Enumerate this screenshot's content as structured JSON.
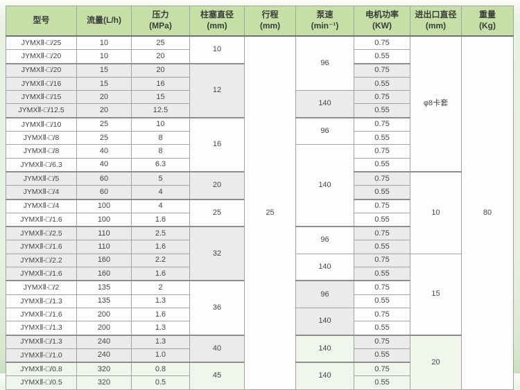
{
  "colors": {
    "header_bg": "#c6dfa6",
    "row_shade_gray": "#ebebeb",
    "row_shade_green": "#f0f6eb",
    "page_bg": "#e6f1de",
    "border": "#a2a2a2",
    "text": "#454545"
  },
  "table": {
    "columns": [
      {
        "key": "model",
        "label": "型号"
      },
      {
        "key": "flow",
        "label": "流量(L/h)"
      },
      {
        "key": "pressure",
        "label": "压力\n(MPa)"
      },
      {
        "key": "plunger",
        "label": "柱塞直径\n(mm)"
      },
      {
        "key": "stroke",
        "label": "行程\n(mm)"
      },
      {
        "key": "speed",
        "label": "泵速\n(min⁻¹)"
      },
      {
        "key": "power",
        "label": "电机功率\n(KW)"
      },
      {
        "key": "inlet",
        "label": "进出口直径\n(mm)"
      },
      {
        "key": "weight",
        "label": "重量\n(Kg)"
      }
    ],
    "rows": [
      {
        "model": "JYMXⅡ-□/25",
        "flow": "10",
        "pressure": "25",
        "power": "0.75"
      },
      {
        "model": "JYMXⅡ-□/20",
        "flow": "10",
        "pressure": "20",
        "power": "0.55"
      },
      {
        "model": "JYMXⅡ-□/20",
        "flow": "15",
        "pressure": "20",
        "power": "0.75"
      },
      {
        "model": "JYMXⅡ-□/16",
        "flow": "15",
        "pressure": "16",
        "power": "0.55"
      },
      {
        "model": "JYMXⅡ-□/15",
        "flow": "20",
        "pressure": "15",
        "power": "0.75"
      },
      {
        "model": "JYMXⅡ-□/12.5",
        "flow": "20",
        "pressure": "12.5",
        "power": "0.55"
      },
      {
        "model": "JYMXⅡ-□/10",
        "flow": "25",
        "pressure": "10",
        "power": "0.75"
      },
      {
        "model": "JYMXⅡ-□/8",
        "flow": "25",
        "pressure": "8",
        "power": "0.55"
      },
      {
        "model": "JYMXⅡ-□/8",
        "flow": "40",
        "pressure": "8",
        "power": "0.75"
      },
      {
        "model": "JYMXⅡ-□/6.3",
        "flow": "40",
        "pressure": "6.3",
        "power": "0.55"
      },
      {
        "model": "JYMXⅡ-□/5",
        "flow": "60",
        "pressure": "5",
        "power": "0.75"
      },
      {
        "model": "JYMXⅡ-□/4",
        "flow": "60",
        "pressure": "4",
        "power": "0.55"
      },
      {
        "model": "JYMXⅡ-□/4",
        "flow": "100",
        "pressure": "4",
        "power": "0.75"
      },
      {
        "model": "JYMXⅡ-□/1.6",
        "flow": "100",
        "pressure": "1.6",
        "power": "0.55"
      },
      {
        "model": "JYMXⅡ-□/2.5",
        "flow": "110",
        "pressure": "2.5",
        "power": "0.75"
      },
      {
        "model": "JYMXⅡ-□/1.6",
        "flow": "110",
        "pressure": "1.6",
        "power": "0.55"
      },
      {
        "model": "JYMXⅡ-□/2.2",
        "flow": "160",
        "pressure": "2.2",
        "power": "0.75"
      },
      {
        "model": "JYMXⅡ-□/1.6",
        "flow": "160",
        "pressure": "1.6",
        "power": "0.55"
      },
      {
        "model": "JYMXⅡ-□/2",
        "flow": "135",
        "pressure": "2",
        "power": "0.75"
      },
      {
        "model": "JYMXⅡ-□/1.3",
        "flow": "135",
        "pressure": "1.3",
        "power": "0.55"
      },
      {
        "model": "JYMXⅡ-□/1.6",
        "flow": "200",
        "pressure": "1.6",
        "power": "0.75"
      },
      {
        "model": "JYMXⅡ-□/1.3",
        "flow": "200",
        "pressure": "1.3",
        "power": "0.55"
      },
      {
        "model": "JYMXⅡ-□/1.3",
        "flow": "240",
        "pressure": "1.3",
        "power": "0.75"
      },
      {
        "model": "JYMXⅡ-□/1.0",
        "flow": "240",
        "pressure": "1.0",
        "power": "0.55"
      },
      {
        "model": "JYMXⅡ-□/0.8",
        "flow": "320",
        "pressure": "0.8",
        "power": "0.75"
      },
      {
        "model": "JYMXⅡ-□/0.5",
        "flow": "320",
        "pressure": "0.5",
        "power": "0.55"
      }
    ],
    "spans": {
      "plunger": [
        {
          "value": "10",
          "rows": 2,
          "shade": "white"
        },
        {
          "value": "12",
          "rows": 4,
          "shade": "gray"
        },
        {
          "value": "16",
          "rows": 4,
          "shade": "white"
        },
        {
          "value": "20",
          "rows": 2,
          "shade": "gray"
        },
        {
          "value": "25",
          "rows": 2,
          "shade": "white"
        },
        {
          "value": "32",
          "rows": 4,
          "shade": "gray"
        },
        {
          "value": "36",
          "rows": 4,
          "shade": "white"
        },
        {
          "value": "40",
          "rows": 2,
          "shade": "gray"
        },
        {
          "value": "45",
          "rows": 2,
          "shade": "green"
        }
      ],
      "stroke": [
        {
          "value": "25",
          "rows": 26,
          "shade": "white"
        }
      ],
      "speed": [
        {
          "value": "96",
          "rows": 4,
          "shade": "white"
        },
        {
          "value": "140",
          "rows": 2,
          "shade": "gray"
        },
        {
          "value": "96",
          "rows": 2,
          "shade": "white"
        },
        {
          "value": "140",
          "rows": 6,
          "shade": "white"
        },
        {
          "value": "96",
          "rows": 2,
          "shade": "white"
        },
        {
          "value": "140",
          "rows": 2,
          "shade": "white"
        },
        {
          "value": "96",
          "rows": 2,
          "shade": "gray"
        },
        {
          "value": "140",
          "rows": 2,
          "shade": "gray"
        },
        {
          "value": "140",
          "rows": 2,
          "shade": "green"
        },
        {
          "value": "140",
          "rows": 2,
          "shade": "green"
        }
      ],
      "inlet": [
        {
          "value": "φ8卡套",
          "rows": 10,
          "shade": "white"
        },
        {
          "value": "10",
          "rows": 6,
          "shade": "white"
        },
        {
          "value": "15",
          "rows": 6,
          "shade": "white"
        },
        {
          "value": "20",
          "rows": 4,
          "shade": "green"
        }
      ],
      "weight": [
        {
          "value": "80",
          "rows": 26,
          "shade": "white"
        }
      ]
    }
  }
}
